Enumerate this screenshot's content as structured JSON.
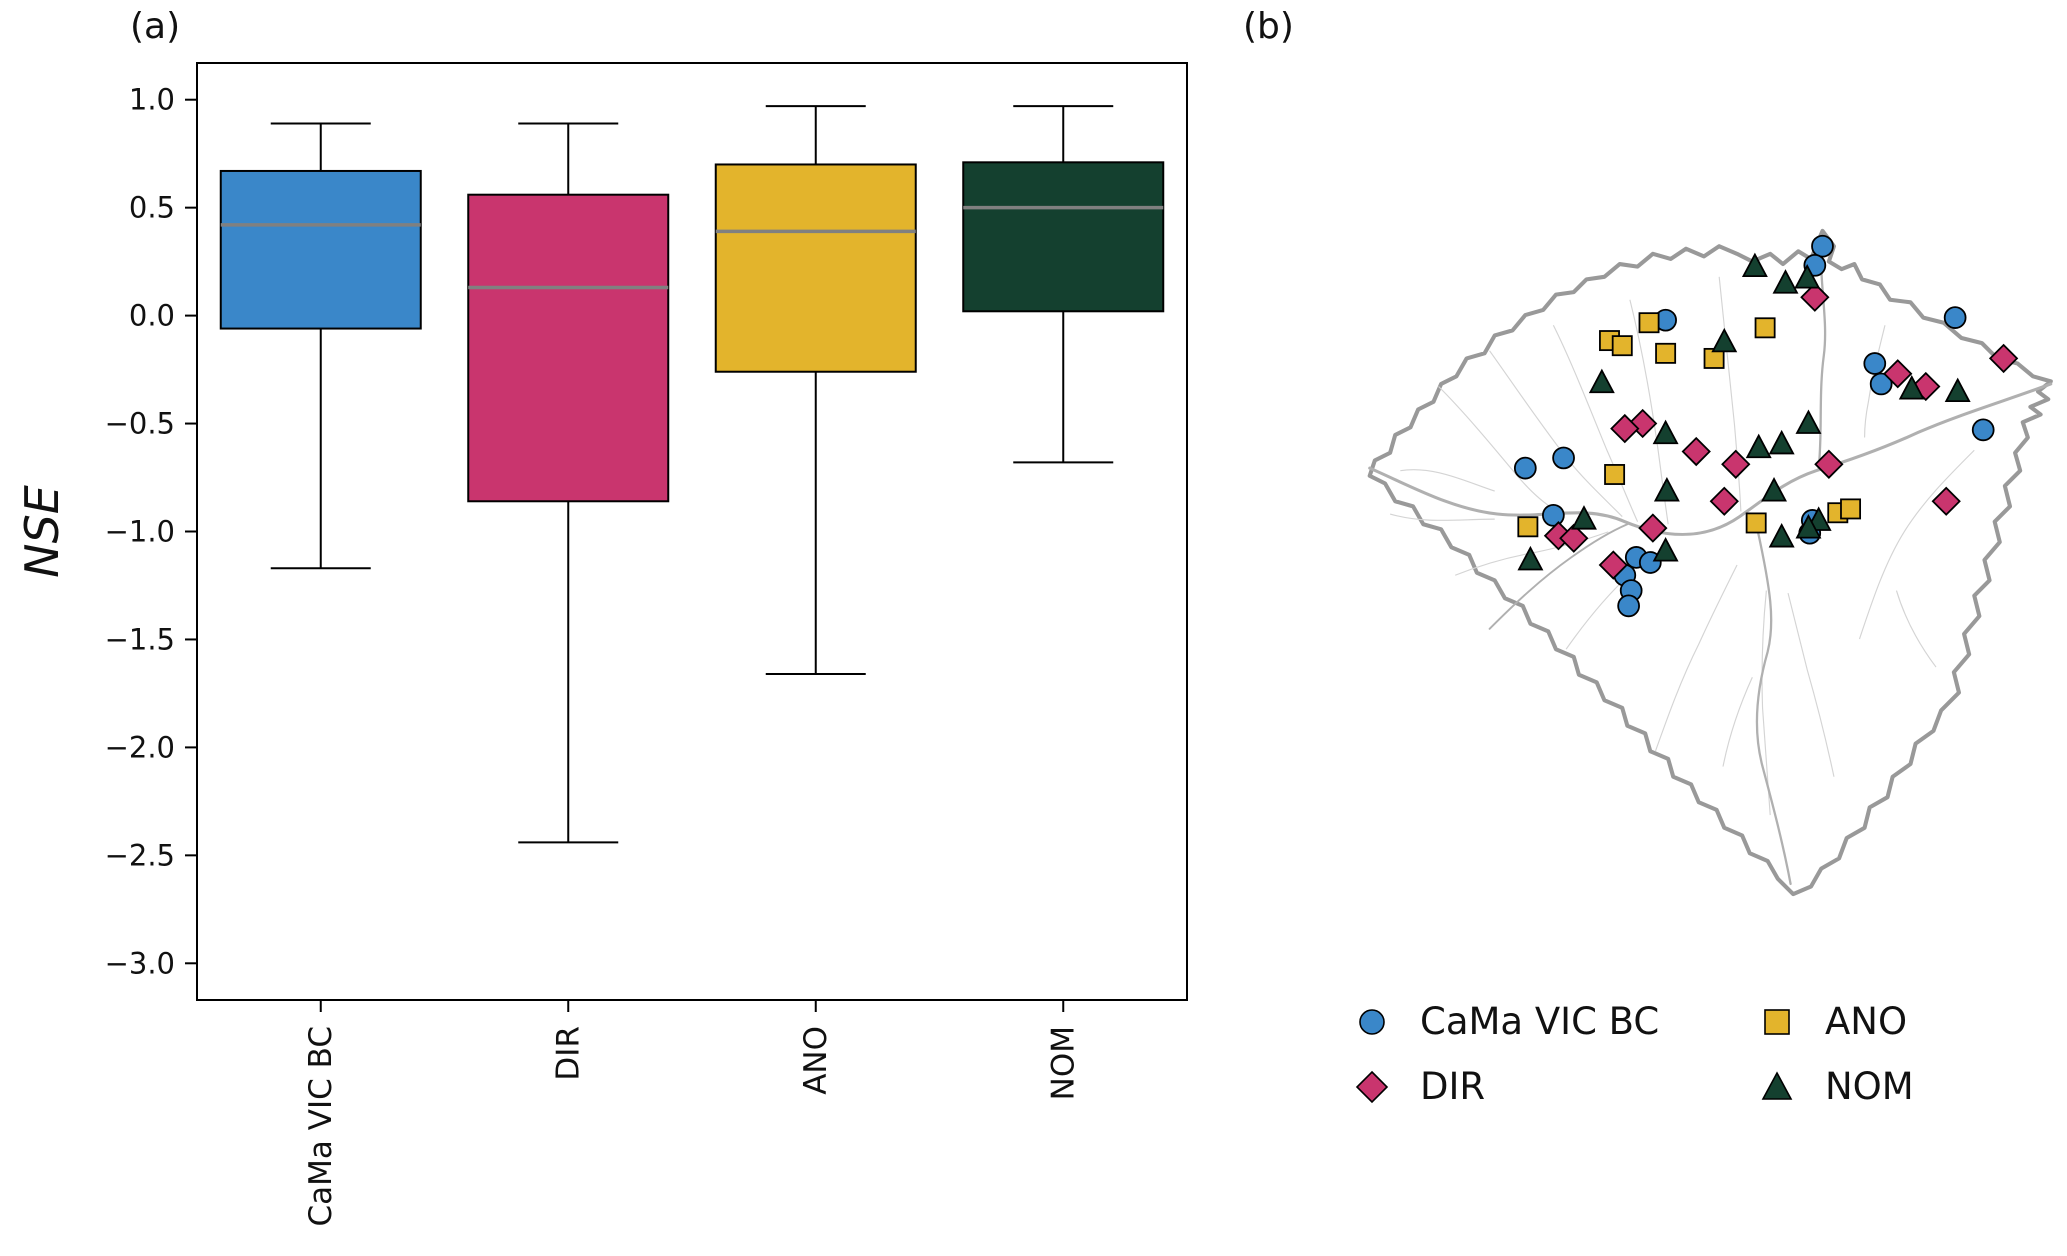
{
  "figure": {
    "panel_a_label": "(a)",
    "panel_b_label": "(b)"
  },
  "colors": {
    "cama_vic_bc": "#3a87c9",
    "dir": "#c9356e",
    "ano": "#e3b42c",
    "nom": "#14402f",
    "median_line": "#808080",
    "box_edge": "#000000",
    "basin_outline": "#999999",
    "river_main": "#b0b0b0",
    "river_minor": "#d4d4d4"
  },
  "chart_data": {
    "type": "boxplot",
    "title": "",
    "ylabel": "NSE",
    "xlabel": "",
    "ylim": [
      -3.17,
      1.17
    ],
    "yticks": [
      1.0,
      0.5,
      0.0,
      -0.5,
      -1.0,
      -1.5,
      -2.0,
      -2.5,
      -3.0
    ],
    "ytick_labels": [
      "1.0",
      "0.5",
      "0.0",
      "−0.5",
      "−1.0",
      "−1.5",
      "−2.0",
      "−2.5",
      "−3.0"
    ],
    "grid": false,
    "categories": [
      "CaMa VIC BC",
      "DIR",
      "ANO",
      "NOM"
    ],
    "series": [
      {
        "name": "CaMa VIC BC",
        "color": "#3a87c9",
        "whisker_low": -1.17,
        "q1": -0.06,
        "median": 0.42,
        "q3": 0.67,
        "whisker_high": 0.89
      },
      {
        "name": "DIR",
        "color": "#c9356e",
        "whisker_low": -2.44,
        "q1": -0.86,
        "median": 0.13,
        "q3": 0.56,
        "whisker_high": 0.89
      },
      {
        "name": "ANO",
        "color": "#e3b42c",
        "whisker_low": -1.66,
        "q1": -0.26,
        "median": 0.39,
        "q3": 0.7,
        "whisker_high": 0.97
      },
      {
        "name": "NOM",
        "color": "#14402f",
        "whisker_low": -0.68,
        "q1": 0.02,
        "median": 0.5,
        "q3": 0.71,
        "whisker_high": 0.97
      }
    ]
  },
  "map": {
    "description": "Amazon basin with gauge locations",
    "markers": {
      "cama_vic_bc": [
        [
          383,
          22
        ],
        [
          377,
          37
        ],
        [
          260,
          80
        ],
        [
          487,
          78
        ],
        [
          424,
          114
        ],
        [
          429,
          130
        ],
        [
          509,
          166
        ],
        [
          180,
          188
        ],
        [
          150,
          196
        ],
        [
          172,
          233
        ],
        [
          375,
          237
        ],
        [
          373,
          247
        ],
        [
          237,
          266
        ],
        [
          248,
          270
        ],
        [
          228,
          280
        ],
        [
          233,
          292
        ],
        [
          231,
          304
        ]
      ],
      "dir": [
        [
          377,
          62
        ],
        [
          525,
          110
        ],
        [
          442,
          122
        ],
        [
          464,
          132
        ],
        [
          242,
          161
        ],
        [
          228,
          165
        ],
        [
          284,
          183
        ],
        [
          315,
          193
        ],
        [
          388,
          193
        ],
        [
          306,
          222
        ],
        [
          480,
          222
        ],
        [
          250,
          243
        ],
        [
          176,
          249
        ],
        [
          188,
          251
        ],
        [
          219,
          272
        ]
      ],
      "ano": [
        [
          247,
          82
        ],
        [
          216,
          96
        ],
        [
          226,
          100
        ],
        [
          260,
          106
        ],
        [
          338,
          86
        ],
        [
          298,
          110
        ],
        [
          220,
          201
        ],
        [
          331,
          239
        ],
        [
          395,
          231
        ],
        [
          405,
          228
        ],
        [
          152,
          242
        ]
      ],
      "nom": [
        [
          330,
          38
        ],
        [
          354,
          51
        ],
        [
          371,
          47
        ],
        [
          306,
          97
        ],
        [
          210,
          129
        ],
        [
          453,
          134
        ],
        [
          489,
          136
        ],
        [
          372,
          161
        ],
        [
          260,
          169
        ],
        [
          333,
          180
        ],
        [
          351,
          177
        ],
        [
          261,
          214
        ],
        [
          345,
          214
        ],
        [
          196,
          236
        ],
        [
          380,
          237
        ],
        [
          372,
          243
        ],
        [
          351,
          250
        ],
        [
          260,
          261
        ],
        [
          154,
          268
        ]
      ]
    }
  },
  "legend": {
    "items": [
      {
        "label": "CaMa VIC BC",
        "marker": "circle",
        "color": "#3a87c9"
      },
      {
        "label": "ANO",
        "marker": "square",
        "color": "#e3b42c"
      },
      {
        "label": "DIR",
        "marker": "diamond",
        "color": "#c9356e"
      },
      {
        "label": "NOM",
        "marker": "triangle",
        "color": "#14402f"
      }
    ]
  }
}
